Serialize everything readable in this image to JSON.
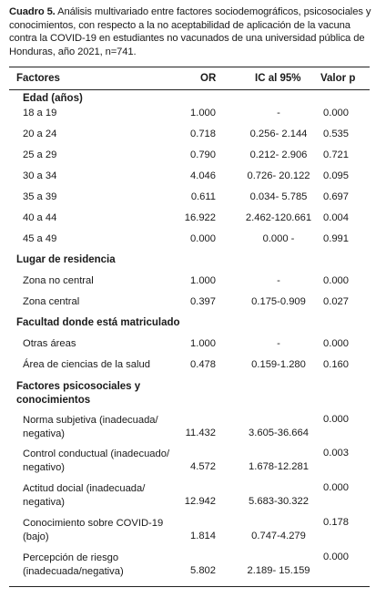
{
  "caption": {
    "label": "Cuadro 5.",
    "text": " Análisis multivariado entre factores sociodemográficos, psicosociales y conocimientos, con respecto a la no aceptabilidad de aplicación de la vacuna contra la COVID-19 en estudiantes no vacunados de una universidad pública de Honduras, año 2021, n=741."
  },
  "headers": {
    "factores": "Factores",
    "or": "OR",
    "ic": "IC al 95%",
    "p": "Valor p"
  },
  "sections": [
    {
      "title": "Edad (años)",
      "rows": [
        {
          "label": "18 a 19",
          "or": "1.000",
          "ic": "-",
          "p": "0.000"
        },
        {
          "label": "20 a 24",
          "or": "0.718",
          "ic": "0.256- 2.144",
          "p": "0.535"
        },
        {
          "label": "25 a 29",
          "or": "0.790",
          "ic": "0.212- 2.906",
          "p": "0.721"
        },
        {
          "label": "30 a 34",
          "or": "4.046",
          "ic": "0.726- 20.122",
          "p": "0.095"
        },
        {
          "label": "35 a 39",
          "or": "0.611",
          "ic": "0.034- 5.785",
          "p": "0.697"
        },
        {
          "label": "40 a 44",
          "or": "16.922",
          "ic": "2.462-120.661",
          "p": "0.004"
        },
        {
          "label": "45 a 49",
          "or": "0.000",
          "ic": "0.000 -",
          "p": "0.991"
        }
      ]
    },
    {
      "title": "Lugar de residencia",
      "rows": [
        {
          "label": "Zona no central",
          "or": "1.000",
          "ic": "-",
          "p": "0.000"
        },
        {
          "label": "Zona central",
          "or": "0.397",
          "ic": "0.175-0.909",
          "p": "0.027"
        }
      ]
    },
    {
      "title": "Facultad donde está matriculado",
      "rows": [
        {
          "label": "Otras áreas",
          "or": "1.000",
          "ic": "-",
          "p": "0.000"
        },
        {
          "label": "Área de ciencias de la salud",
          "or": "0.478",
          "ic": "0.159-1.280",
          "p": "0.160"
        }
      ]
    },
    {
      "title": "Factores psicosociales y conocimientos",
      "rows": [
        {
          "label": "Norma subjetiva (inadecuada/ negativa)",
          "or": "11.432",
          "ic": "3.605-36.664",
          "p": "0.000"
        },
        {
          "label": "Control conductual (inadecuado/ negativo)",
          "or": "4.572",
          "ic": "1.678-12.281",
          "p": "0.003"
        },
        {
          "label": "Actitud docial (inadecuada/ negativa)",
          "or": "12.942",
          "ic": "5.683-30.322",
          "p": "0.000"
        },
        {
          "label": "Conocimiento sobre COVID-19 (bajo)",
          "or": "1.814",
          "ic": "0.747-4.279",
          "p": "0.178"
        },
        {
          "label": "Percepción de riesgo (inadecuada/negativa)",
          "or": "5.802",
          "ic": "2.189- 15.159",
          "p": "0.000"
        }
      ]
    }
  ]
}
